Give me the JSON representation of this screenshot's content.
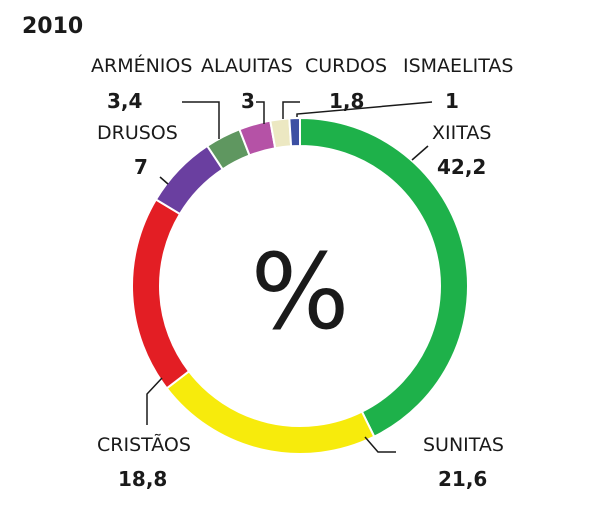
{
  "chart_data": {
    "type": "pie",
    "title": "2010",
    "center_label": "%",
    "slices": [
      {
        "label": "XIITAS",
        "value": 42.2,
        "value_text": "42,2",
        "color": "#1eb14a"
      },
      {
        "label": "SUNITAS",
        "value": 21.6,
        "value_text": "21,6",
        "color": "#f7eb0c"
      },
      {
        "label": "CRISTÃOS",
        "value": 18.8,
        "value_text": "18,8",
        "color": "#e31e24"
      },
      {
        "label": "DRUSOS",
        "value": 7,
        "value_text": "7",
        "color": "#6a3fa0"
      },
      {
        "label": "ARMÉNIOS",
        "value": 3.4,
        "value_text": "3,4",
        "color": "#5f9760"
      },
      {
        "label": "ALAUITAS",
        "value": 3,
        "value_text": "3",
        "color": "#b552a6"
      },
      {
        "label": "CURDOS",
        "value": 1.8,
        "value_text": "1,8",
        "color": "#ece8c2"
      },
      {
        "label": "ISMAELITAS",
        "value": 1,
        "value_text": "1",
        "color": "#3c4fa3"
      }
    ]
  }
}
